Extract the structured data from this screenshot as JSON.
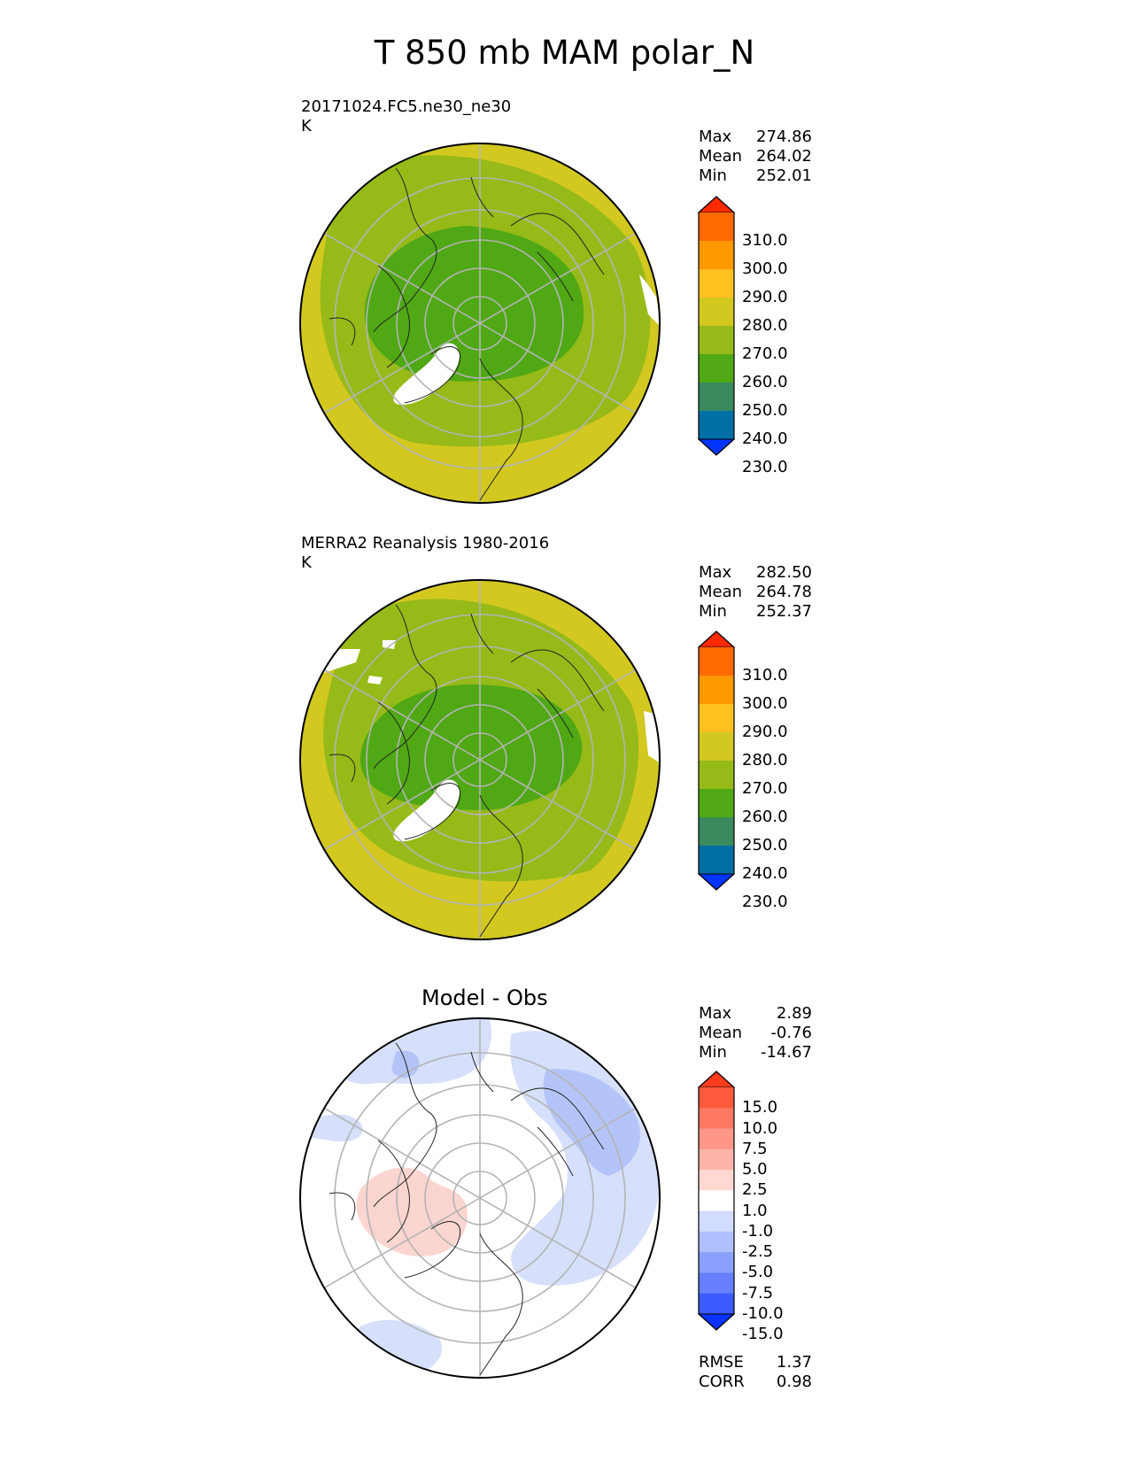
{
  "figure": {
    "title": "T 850 mb MAM polar_N"
  },
  "panels": [
    {
      "name": "test",
      "title_line1": "20171024.FC5.ne30_ne30",
      "title_line2": "K",
      "subtitle": "",
      "stats": [
        {
          "label": "Max",
          "value": "274.86"
        },
        {
          "label": "Mean",
          "value": "264.02"
        },
        {
          "label": "Min",
          "value": "252.01"
        }
      ],
      "colorbar": {
        "labels": [
          "310.0",
          "300.0",
          "290.0",
          "280.0",
          "270.0",
          "260.0",
          "250.0",
          "240.0",
          "230.0"
        ],
        "colors": [
          "#ff2a00",
          "#ff6a00",
          "#ff9900",
          "#ffc020",
          "#d2c820",
          "#96ba18",
          "#4fa814",
          "#3a8a5e",
          "#006fa6",
          "#0034ff"
        ]
      },
      "fields": {
        "outer": "#d2c820",
        "mid": "#96ba18",
        "inner": "#4fa814",
        "gap": "#ffffff"
      }
    },
    {
      "name": "reference",
      "title_line1": "MERRA2 Reanalysis 1980-2016",
      "title_line2": "K",
      "subtitle": "",
      "stats": [
        {
          "label": "Max",
          "value": "282.50"
        },
        {
          "label": "Mean",
          "value": "264.78"
        },
        {
          "label": "Min",
          "value": "252.37"
        }
      ],
      "colorbar": {
        "labels": [
          "310.0",
          "300.0",
          "290.0",
          "280.0",
          "270.0",
          "260.0",
          "250.0",
          "240.0",
          "230.0"
        ],
        "colors": [
          "#ff2a00",
          "#ff6a00",
          "#ff9900",
          "#ffc020",
          "#d2c820",
          "#96ba18",
          "#4fa814",
          "#3a8a5e",
          "#006fa6",
          "#0034ff"
        ]
      },
      "fields": {
        "outer": "#d2c820",
        "mid": "#96ba18",
        "inner": "#4fa814",
        "gap": "#ffffff"
      }
    },
    {
      "name": "difference",
      "title_line1": "",
      "title_line2": "",
      "subtitle": "Model - Obs",
      "stats": [
        {
          "label": "Max",
          "value": "2.89"
        },
        {
          "label": "Mean",
          "value": "-0.76"
        },
        {
          "label": "Min",
          "value": "-14.67"
        }
      ],
      "extra_stats": [
        {
          "label": "RMSE",
          "value": "1.37"
        },
        {
          "label": "CORR",
          "value": "0.98"
        }
      ],
      "colorbar": {
        "labels": [
          "15.0",
          "10.0",
          "7.5",
          "5.0",
          "2.5",
          "1.0",
          "-1.0",
          "-2.5",
          "-5.0",
          "-7.5",
          "-10.0",
          "-15.0"
        ],
        "colors": [
          "#ff3c1e",
          "#ff5a3c",
          "#ff7864",
          "#ff9688",
          "#ffb4aa",
          "#ffd8d2",
          "#ffffff",
          "#d2dcff",
          "#b0c0ff",
          "#8aa0ff",
          "#6680ff",
          "#3c5cff",
          "#0a32ff"
        ]
      },
      "fields": {
        "pink": "#fbd6d0",
        "light_blue": "#d6e0fb",
        "blue": "#b4c4f8",
        "gap": "#ffffff"
      }
    }
  ],
  "chart_data": [
    {
      "type": "contour_map",
      "projection": "north polar stereographic",
      "title": "20171024.FC5.ne30_ne30",
      "units": "K",
      "stats": {
        "max": 274.86,
        "mean": 264.02,
        "min": 252.01
      },
      "levels": [
        230,
        240,
        250,
        260,
        270,
        280,
        290,
        300,
        310
      ]
    },
    {
      "type": "contour_map",
      "projection": "north polar stereographic",
      "title": "MERRA2 Reanalysis 1980-2016",
      "units": "K",
      "stats": {
        "max": 282.5,
        "mean": 264.78,
        "min": 252.37
      },
      "levels": [
        230,
        240,
        250,
        260,
        270,
        280,
        290,
        300,
        310
      ]
    },
    {
      "type": "contour_map",
      "projection": "north polar stereographic",
      "title": "Model - Obs",
      "stats": {
        "max": 2.89,
        "mean": -0.76,
        "min": -14.67,
        "rmse": 1.37,
        "corr": 0.98
      },
      "levels": [
        -15,
        -10,
        -7.5,
        -5,
        -2.5,
        -1,
        1,
        2.5,
        5,
        7.5,
        10,
        15
      ]
    }
  ]
}
